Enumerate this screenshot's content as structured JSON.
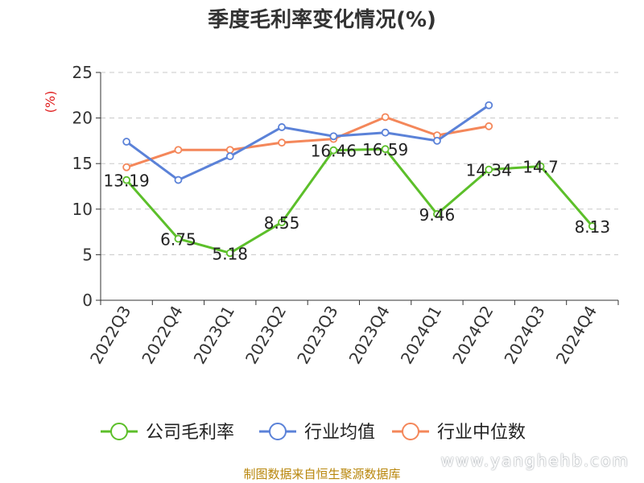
{
  "chart_data": {
    "type": "line",
    "title": "季度毛利率变化情况(%)",
    "ylabel": "(%)",
    "ylim": [
      0,
      25
    ],
    "yticks": [
      0,
      5,
      10,
      15,
      20,
      25
    ],
    "grid": true,
    "legend_position": "bottom",
    "categories": [
      "2022Q3",
      "2022Q4",
      "2023Q1",
      "2023Q2",
      "2023Q3",
      "2023Q4",
      "2024Q1",
      "2024Q2",
      "2024Q3",
      "2024Q4"
    ],
    "series": [
      {
        "name": "公司毛利率",
        "color": "#5cbf2a",
        "show_labels": true,
        "values": [
          13.19,
          6.75,
          5.18,
          8.55,
          16.46,
          16.59,
          9.46,
          14.34,
          14.7,
          8.13
        ]
      },
      {
        "name": "行业均值",
        "color": "#5b82d8",
        "show_labels": false,
        "values": [
          17.4,
          13.2,
          15.8,
          19.0,
          18.0,
          18.4,
          17.5,
          21.4,
          null,
          null
        ]
      },
      {
        "name": "行业中位数",
        "color": "#f4875a",
        "show_labels": false,
        "values": [
          14.6,
          16.5,
          16.5,
          17.3,
          17.7,
          20.1,
          18.1,
          19.1,
          null,
          null
        ]
      }
    ]
  },
  "source": "制图数据来自恒生聚源数据库",
  "watermark": "www.yanghehb.com"
}
